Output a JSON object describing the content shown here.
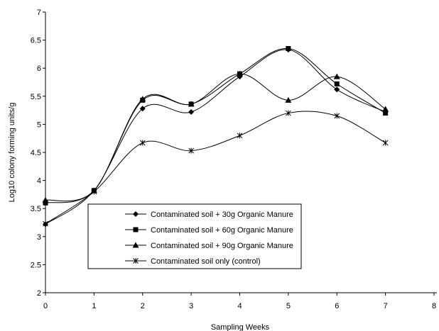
{
  "chart_data": {
    "type": "line",
    "xlabel": "Sampling Weeks",
    "ylabel": "Log10 colony forming units/g",
    "xlim": [
      0,
      8
    ],
    "ylim": [
      2,
      7
    ],
    "x_ticks": [
      "0",
      "1",
      "2",
      "3",
      "4",
      "5",
      "6",
      "7",
      "8"
    ],
    "y_ticks": [
      "2",
      "2.5",
      "3",
      "3.5",
      "4",
      "4.5",
      "5",
      "5.5",
      "6",
      "6.5",
      "7"
    ],
    "grid": false,
    "legend_position": "inside, lower-center",
    "x": [
      0,
      1,
      2,
      3,
      4,
      5,
      6,
      7
    ],
    "series": [
      {
        "name": "Contaminated soil + 30g Organic Manure",
        "marker": "diamond",
        "values": [
          3.22,
          3.82,
          5.28,
          5.22,
          5.85,
          6.33,
          5.62,
          5.22
        ]
      },
      {
        "name": "Contaminated soil + 60g Organic Manure",
        "marker": "square",
        "values": [
          3.6,
          3.82,
          5.43,
          5.36,
          5.9,
          6.35,
          5.72,
          5.2
        ]
      },
      {
        "name": "Contaminated soil + 90g Organic Manure",
        "marker": "triangle",
        "values": [
          3.65,
          3.82,
          5.45,
          5.36,
          5.9,
          5.43,
          5.85,
          5.27
        ]
      },
      {
        "name": "Contaminated soil only (control)",
        "marker": "asterisk",
        "values": [
          3.23,
          3.8,
          4.67,
          4.53,
          4.8,
          5.2,
          5.15,
          4.67
        ]
      }
    ]
  }
}
